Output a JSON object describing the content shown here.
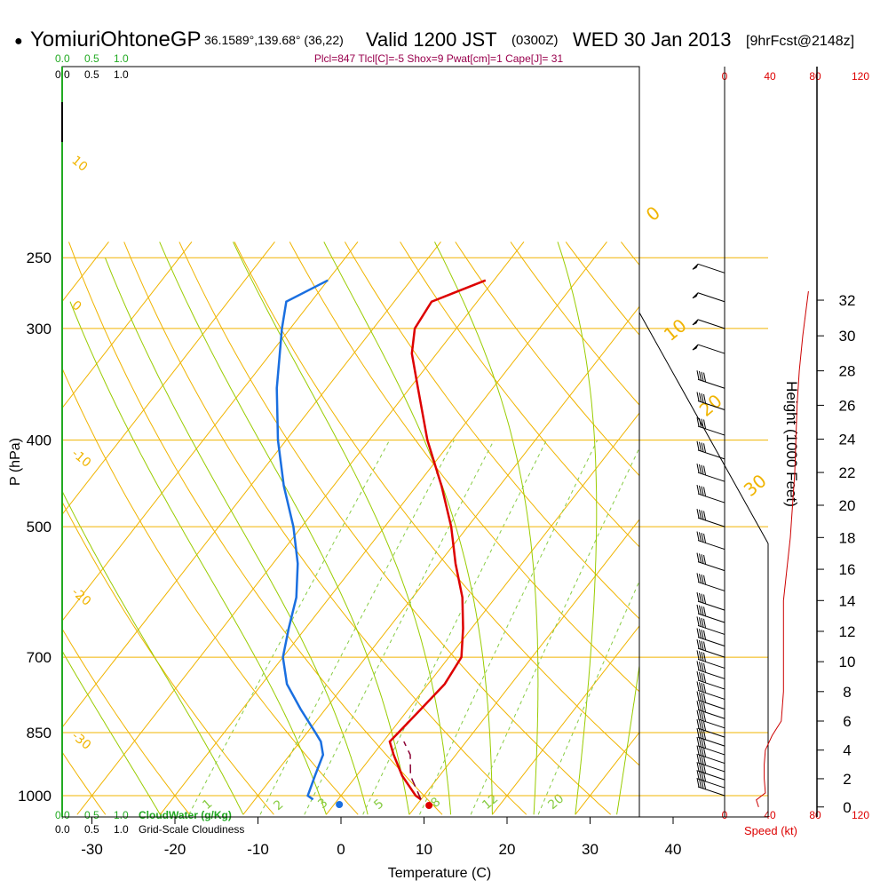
{
  "header": {
    "bullet": "●",
    "station": "YomiuriOhtoneGP",
    "coords": "36.1589°,139.68° (36,22)",
    "valid": "Valid 1200 JST",
    "utc": "(0300Z)",
    "date": "WED 30 Jan 2013",
    "forecast": "[9hrFcst@2148z]",
    "indices": "Plcl=847 Tlcl[C]=-5 Shox=9 Pwat[cm]=1 Cape[J]= 31"
  },
  "colors": {
    "isobar": "#f0b400",
    "isotherm": "#f0b400",
    "dry_adiabat": "#f0b400",
    "moist_adiabat": "#99cc00",
    "mixing_ratio": "#88cc44",
    "temperature": "#dd0000",
    "dewpoint": "#1a6fe0",
    "parcel": "#8b0033",
    "wind_speed": "#cc0000",
    "cloudwater": "#22aa22"
  },
  "labels": {
    "y_title": "P (hPa)",
    "x_title": "Temperature (C)",
    "height_title": "Height (1000 Feet)",
    "speed_title": "Speed (kt)",
    "cloudwater_title": "CloudWater (g/Kg)",
    "cloudiness_title": "Grid-Scale Cloudiness",
    "top_green_ticks": [
      "0.0",
      "0.5",
      "1.0"
    ],
    "top_black_ticks": [
      "0.0",
      "0.5",
      "1.0"
    ],
    "bottom_green_ticks": [
      "0.0",
      "0.5",
      "1.0"
    ],
    "bottom_black_ticks": [
      "0.0",
      "0.5",
      "1.0"
    ],
    "speed_ticks_top": [
      "0",
      "40",
      "80",
      "120"
    ],
    "speed_ticks_bottom": [
      "0",
      "40",
      "80",
      "120"
    ]
  },
  "chart_data": {
    "type": "line",
    "title": "YomiuriOhtoneGP Valid 1200 JST (0300Z) WED 30 Jan 2013",
    "xlabel": "Temperature (C)",
    "ylabel": "P (hPa)",
    "x_ticks": [
      -30,
      -20,
      -10,
      0,
      10,
      20,
      30,
      40
    ],
    "pressure_levels": [
      250,
      300,
      400,
      500,
      700,
      850,
      1000
    ],
    "height_ticks_kft": [
      0,
      2,
      4,
      6,
      8,
      10,
      12,
      14,
      16,
      18,
      20,
      22,
      24,
      26,
      28,
      30,
      32
    ],
    "dry_adiabat_labels": [
      "10",
      "0",
      "-10",
      "-20",
      "-30"
    ],
    "moist_adiabat_labels": [
      "0",
      "10",
      "20",
      "30"
    ],
    "mixing_ratio_labels": [
      "1",
      "2",
      "3",
      "5",
      "8",
      "12",
      "20"
    ],
    "series": [
      {
        "name": "Temperature",
        "points": [
          {
            "p": 1010,
            "t": 10.0
          },
          {
            "p": 1000,
            "t": 9.0
          },
          {
            "p": 950,
            "t": 5.5
          },
          {
            "p": 900,
            "t": 2.5
          },
          {
            "p": 870,
            "t": 0.8
          },
          {
            "p": 850,
            "t": 1.0
          },
          {
            "p": 800,
            "t": 1.5
          },
          {
            "p": 750,
            "t": 2.0
          },
          {
            "p": 700,
            "t": 1.5
          },
          {
            "p": 650,
            "t": -1.0
          },
          {
            "p": 600,
            "t": -4.0
          },
          {
            "p": 550,
            "t": -8.0
          },
          {
            "p": 500,
            "t": -12.0
          },
          {
            "p": 450,
            "t": -17.0
          },
          {
            "p": 400,
            "t": -23.0
          },
          {
            "p": 350,
            "t": -29.0
          },
          {
            "p": 320,
            "t": -33.0
          },
          {
            "p": 300,
            "t": -35.0
          },
          {
            "p": 280,
            "t": -35.5
          },
          {
            "p": 265,
            "t": -31.0
          }
        ]
      },
      {
        "name": "Dewpoint",
        "points": [
          {
            "p": 1010,
            "t": -3.0
          },
          {
            "p": 1000,
            "t": -4.0
          },
          {
            "p": 950,
            "t": -5.0
          },
          {
            "p": 900,
            "t": -6.0
          },
          {
            "p": 870,
            "t": -7.5
          },
          {
            "p": 850,
            "t": -9.0
          },
          {
            "p": 800,
            "t": -13.0
          },
          {
            "p": 750,
            "t": -17.0
          },
          {
            "p": 700,
            "t": -20.0
          },
          {
            "p": 650,
            "t": -22.0
          },
          {
            "p": 600,
            "t": -24.0
          },
          {
            "p": 550,
            "t": -27.0
          },
          {
            "p": 500,
            "t": -31.0
          },
          {
            "p": 450,
            "t": -36.0
          },
          {
            "p": 400,
            "t": -41.0
          },
          {
            "p": 350,
            "t": -46.0
          },
          {
            "p": 300,
            "t": -51.0
          },
          {
            "p": 280,
            "t": -53.0
          },
          {
            "p": 265,
            "t": -50.0
          }
        ]
      },
      {
        "name": "Parcel",
        "points": [
          {
            "p": 1010,
            "t": 10.0
          },
          {
            "p": 950,
            "t": 6.5
          },
          {
            "p": 900,
            "t": 4.5
          },
          {
            "p": 870,
            "t": 2.5
          }
        ]
      }
    ],
    "surface_markers": {
      "temperature_c": 10.6,
      "dewpoint_c": -0.2
    },
    "wind_speed_kt": [
      {
        "h": 0.0,
        "v": 30
      },
      {
        "h": 0.5,
        "v": 28
      },
      {
        "h": 1.0,
        "v": 36
      },
      {
        "h": 2.0,
        "v": 35
      },
      {
        "h": 3.0,
        "v": 35
      },
      {
        "h": 4.0,
        "v": 36
      },
      {
        "h": 5.0,
        "v": 42
      },
      {
        "h": 6.0,
        "v": 50
      },
      {
        "h": 8.0,
        "v": 52
      },
      {
        "h": 10.0,
        "v": 52
      },
      {
        "h": 12.0,
        "v": 52
      },
      {
        "h": 14.0,
        "v": 52
      },
      {
        "h": 16.0,
        "v": 55
      },
      {
        "h": 18.0,
        "v": 58
      },
      {
        "h": 20.0,
        "v": 60
      },
      {
        "h": 22.0,
        "v": 62
      },
      {
        "h": 24.0,
        "v": 63
      },
      {
        "h": 26.0,
        "v": 64
      },
      {
        "h": 28.0,
        "v": 66
      },
      {
        "h": 30.0,
        "v": 69
      },
      {
        "h": 32.5,
        "v": 74
      }
    ],
    "wind_barb_pressures": [
      260,
      280,
      300,
      320,
      350,
      370,
      395,
      420,
      445,
      470,
      500,
      530,
      560,
      590,
      620,
      640,
      660,
      680,
      700,
      720,
      740,
      760,
      780,
      800,
      820,
      840,
      860,
      880,
      900,
      920,
      940,
      960,
      980,
      1000
    ]
  }
}
